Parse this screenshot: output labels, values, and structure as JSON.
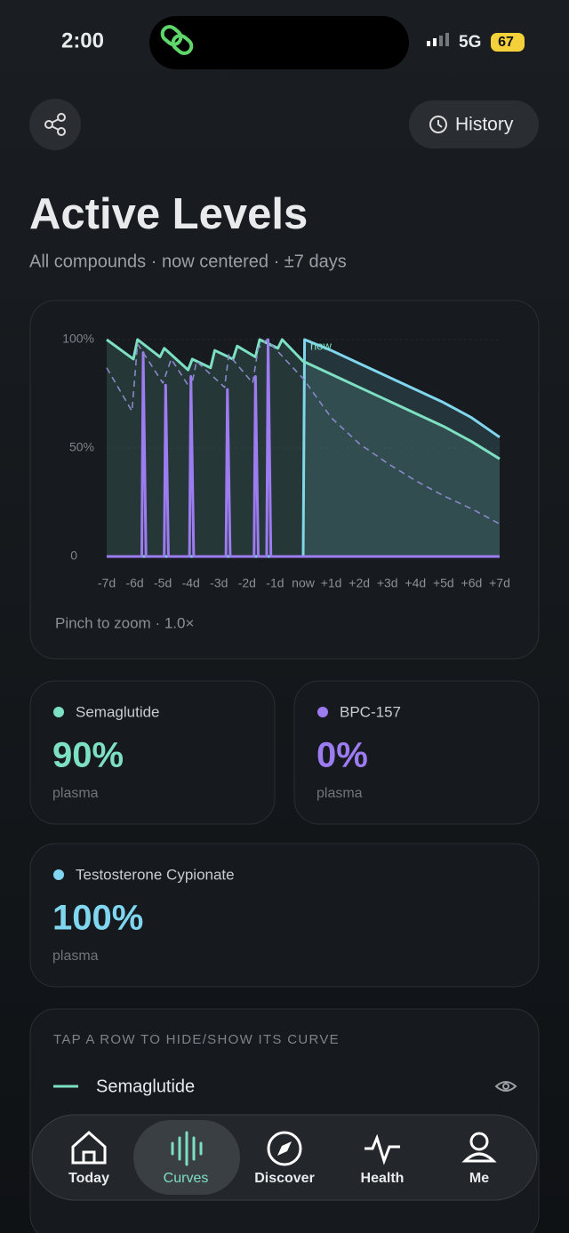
{
  "status_bar": {
    "time": "2:00",
    "network": "5G",
    "battery": "67"
  },
  "header": {
    "history": "History",
    "title": "Active Levels",
    "subtitle": "All compounds · now centered · ±7 days"
  },
  "chart_data": {
    "type": "line",
    "annotation": "now",
    "xlim": [
      -7,
      7
    ],
    "xticks": [
      {
        "value": -7,
        "label": "-7d"
      },
      {
        "value": -6,
        "label": "-6d"
      },
      {
        "value": -5,
        "label": "-5d"
      },
      {
        "value": -4,
        "label": "-4d"
      },
      {
        "value": -3,
        "label": "-3d"
      },
      {
        "value": -2,
        "label": "-2d"
      },
      {
        "value": -1,
        "label": "-1d"
      },
      {
        "value": 0,
        "label": "now"
      },
      {
        "value": 1,
        "label": "+1d"
      },
      {
        "value": 2,
        "label": "+2d"
      },
      {
        "value": 3,
        "label": "+3d"
      },
      {
        "value": 4,
        "label": "+4d"
      },
      {
        "value": 5,
        "label": "+5d"
      },
      {
        "value": 6,
        "label": "+6d"
      },
      {
        "value": 7,
        "label": "+7d"
      }
    ],
    "ylim": [
      0,
      100
    ],
    "yticks": [
      0,
      {
        "value": 50,
        "label": "50%"
      },
      {
        "value": 100,
        "label": "100%"
      }
    ],
    "grid": true,
    "series": [
      {
        "name": "Testosterone Cypionate",
        "color": "#7fd6ee",
        "fill": true,
        "x": [
          -7,
          0,
          0.05,
          1,
          2,
          3,
          4,
          5,
          6,
          7
        ],
        "values": [
          0,
          0,
          100,
          95,
          89,
          83,
          77,
          71,
          64,
          55
        ]
      },
      {
        "name": "Semaglutide",
        "color": "#7ee0c3",
        "fill": true,
        "x": [
          -7,
          -6.05,
          -5.9,
          -5.1,
          -4.95,
          -4.1,
          -3.95,
          -3.3,
          -3.15,
          -2.5,
          -2.35,
          -1.7,
          -1.55,
          -0.9,
          -0.75,
          0,
          1,
          2,
          3,
          4,
          5,
          6,
          7
        ],
        "values": [
          100,
          91,
          100,
          92,
          96,
          86,
          91,
          87,
          95,
          91,
          97,
          92,
          100,
          96,
          100,
          90,
          84,
          78,
          72,
          66,
          60,
          53,
          45
        ]
      },
      {
        "name": "BPC-157",
        "color": "#9d7cf2",
        "fill": false,
        "x": [
          -7,
          -5.75,
          -5.7,
          -5.6,
          -4.95,
          -4.9,
          -4.8,
          -4.05,
          -4.0,
          -3.9,
          -2.75,
          -2.7,
          -2.6,
          -1.75,
          -1.7,
          -1.6,
          -1.3,
          -1.25,
          -1.15,
          7
        ],
        "values": [
          0,
          0,
          94,
          0,
          0,
          79,
          0,
          0,
          83,
          0,
          0,
          77,
          0,
          0,
          83,
          0,
          0,
          100,
          0,
          0
        ]
      },
      {
        "color": "#8a88c8",
        "dashed": true,
        "x": [
          -7,
          -6.1,
          -5.9,
          -5.0,
          -4.7,
          -4.0,
          -3.8,
          -2.8,
          -2.65,
          -1.8,
          -1.6,
          -1.3,
          0,
          1,
          2,
          3,
          4,
          5,
          6,
          7
        ],
        "values": [
          87,
          67,
          98,
          80,
          91,
          77,
          90,
          78,
          93,
          80,
          96,
          100,
          82,
          64,
          52,
          43,
          35,
          28,
          22,
          15
        ]
      }
    ],
    "note": "Pinch to zoom · 1.0×"
  },
  "cards": [
    {
      "name": "Semaglutide",
      "value": "90%",
      "unit": "plasma"
    },
    {
      "name": "BPC-157",
      "value": "0%",
      "unit": "plasma"
    },
    {
      "name": "Testosterone Cypionate",
      "value": "100%",
      "unit": "plasma"
    }
  ],
  "legend_panel": {
    "heading": "TAP A ROW TO HIDE/SHOW ITS CURVE",
    "rows": [
      "Semaglutide"
    ]
  },
  "nav": [
    "Today",
    "Curves",
    "Discover",
    "Health",
    "Me"
  ]
}
